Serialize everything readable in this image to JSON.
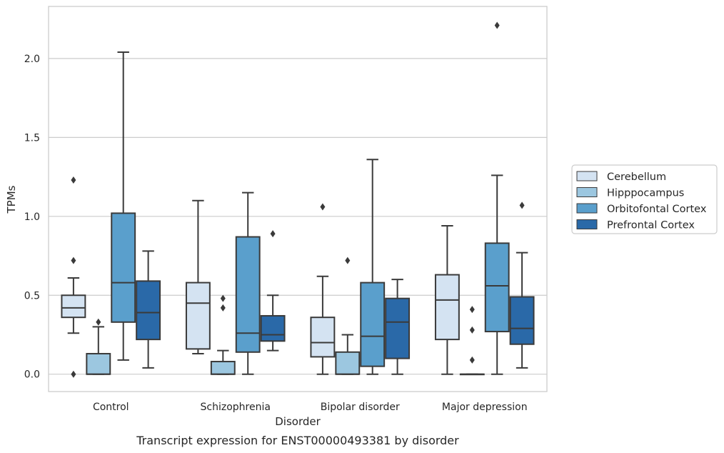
{
  "chart_data": {
    "type": "boxplot",
    "xlabel": "Disorder",
    "ylabel": "TPMs",
    "caption": "Transcript expression for ENST00000493381 by disorder",
    "ylim": [
      -0.11,
      2.33
    ],
    "yticks": [
      0.0,
      0.5,
      1.0,
      1.5,
      2.0
    ],
    "ytick_labels": [
      "0.0",
      "0.5",
      "1.0",
      "1.5",
      "2.0"
    ],
    "grid": "horizontal",
    "legend_position": "right",
    "categories": [
      "Control",
      "Schizophrenia",
      "Bipolar disorder",
      "Major depression"
    ],
    "series": [
      {
        "name": "Cerebellum",
        "color": "#d4e3f2",
        "boxes": [
          {
            "whislo": 0.26,
            "q1": 0.36,
            "med": 0.42,
            "q3": 0.5,
            "whishi": 0.61,
            "fliers": [
              0.72,
              1.23,
              0.0
            ]
          },
          {
            "whislo": 0.13,
            "q1": 0.16,
            "med": 0.45,
            "q3": 0.58,
            "whishi": 1.1,
            "fliers": []
          },
          {
            "whislo": 0.0,
            "q1": 0.11,
            "med": 0.2,
            "q3": 0.36,
            "whishi": 0.62,
            "fliers": [
              1.06
            ]
          },
          {
            "whislo": 0.0,
            "q1": 0.22,
            "med": 0.47,
            "q3": 0.63,
            "whishi": 0.94,
            "fliers": []
          }
        ]
      },
      {
        "name": "Hipppocampus",
        "color": "#9cc7e0",
        "boxes": [
          {
            "whislo": 0.0,
            "q1": 0.0,
            "med": 0.0,
            "q3": 0.13,
            "whishi": 0.3,
            "fliers": [
              0.33
            ]
          },
          {
            "whislo": 0.0,
            "q1": 0.0,
            "med": 0.0,
            "q3": 0.08,
            "whishi": 0.15,
            "fliers": [
              0.42,
              0.48
            ]
          },
          {
            "whislo": 0.0,
            "q1": 0.0,
            "med": 0.0,
            "q3": 0.14,
            "whishi": 0.25,
            "fliers": [
              0.72
            ]
          },
          {
            "whislo": 0.0,
            "q1": 0.0,
            "med": 0.0,
            "q3": 0.0,
            "whishi": 0.0,
            "fliers": [
              0.09,
              0.28,
              0.41
            ]
          }
        ]
      },
      {
        "name": "Orbitofontal Cortex",
        "color": "#5a9fcc",
        "boxes": [
          {
            "whislo": 0.09,
            "q1": 0.33,
            "med": 0.58,
            "q3": 1.02,
            "whishi": 2.04,
            "fliers": []
          },
          {
            "whislo": 0.0,
            "q1": 0.14,
            "med": 0.26,
            "q3": 0.87,
            "whishi": 1.15,
            "fliers": []
          },
          {
            "whislo": 0.0,
            "q1": 0.05,
            "med": 0.24,
            "q3": 0.58,
            "whishi": 1.36,
            "fliers": []
          },
          {
            "whislo": 0.0,
            "q1": 0.27,
            "med": 0.56,
            "q3": 0.83,
            "whishi": 1.26,
            "fliers": [
              2.21
            ]
          }
        ]
      },
      {
        "name": "Prefrontal Cortex",
        "color": "#2a69a8",
        "boxes": [
          {
            "whislo": 0.04,
            "q1": 0.22,
            "med": 0.39,
            "q3": 0.59,
            "whishi": 0.78,
            "fliers": []
          },
          {
            "whislo": 0.15,
            "q1": 0.21,
            "med": 0.25,
            "q3": 0.37,
            "whishi": 0.5,
            "fliers": [
              0.89
            ]
          },
          {
            "whislo": 0.0,
            "q1": 0.1,
            "med": 0.33,
            "q3": 0.48,
            "whishi": 0.6,
            "fliers": []
          },
          {
            "whislo": 0.04,
            "q1": 0.19,
            "med": 0.29,
            "q3": 0.49,
            "whishi": 0.77,
            "fliers": [
              1.07
            ]
          }
        ]
      }
    ]
  }
}
